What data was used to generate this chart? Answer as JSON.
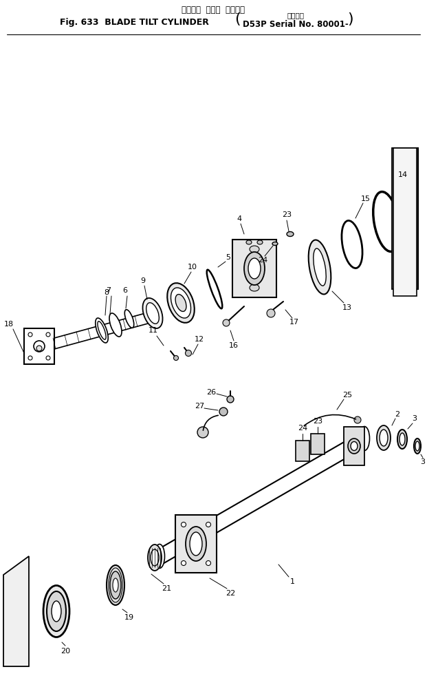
{
  "title_jp": "ブレード  チルト  シリンダ",
  "title_en": "Fig. 633  BLADE TILT CYLINDER",
  "title_serial_jp": "適用号機",
  "title_serial_en": "D53P Serial No. 80001-",
  "bg_color": "#ffffff",
  "lc": "#000000",
  "fig_width": 6.21,
  "fig_height": 9.82,
  "dpi": 100
}
